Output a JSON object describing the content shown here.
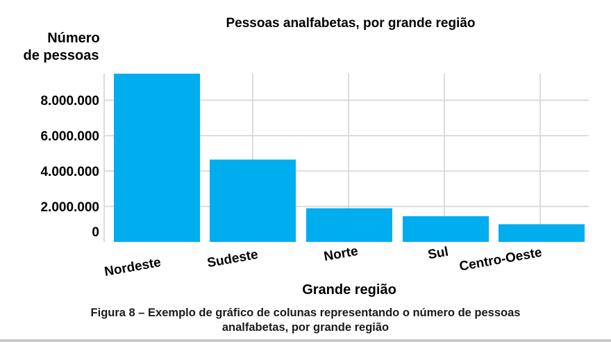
{
  "chart_data": {
    "type": "bar",
    "title": "Pessoas analfabetas, por grande região",
    "ylabel_lines": [
      "Número",
      "de pessoas"
    ],
    "xlabel": "Grande região",
    "categories": [
      "Nordeste",
      "Sudeste",
      "Norte",
      "Sul",
      "Centro-Oeste"
    ],
    "values": [
      9500000,
      4650000,
      1900000,
      1450000,
      1000000
    ],
    "yticks": [
      {
        "value": 0,
        "label": "0"
      },
      {
        "value": 2000000,
        "label": "2.000.000"
      },
      {
        "value": 4000000,
        "label": "4.000.000"
      },
      {
        "value": 6000000,
        "label": "6.000.000"
      },
      {
        "value": 8000000,
        "label": "8.000.000"
      }
    ],
    "ylim": [
      0,
      9500000
    ],
    "grid": true,
    "bar_color": "#00adee",
    "grid_color": "#dcdcdc"
  },
  "caption": {
    "line1": "Figura 8 – Exemplo de gráfico de colunas representando o número de pessoas",
    "line2": "analfabetas, por grande região"
  }
}
